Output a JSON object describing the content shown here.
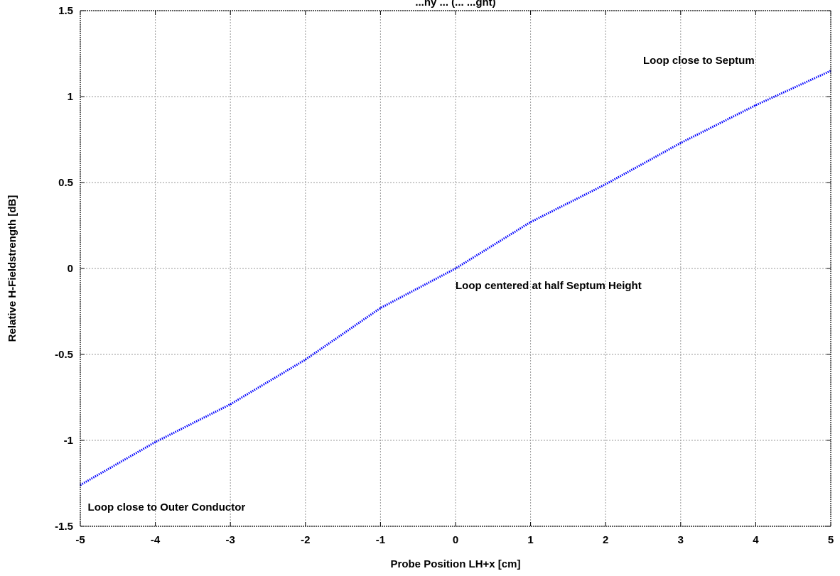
{
  "chart_data": {
    "type": "line",
    "title": "...ny ... (... ...ght)",
    "xlabel": "Probe Position LH+x [cm]",
    "ylabel": "Relative H-Fieldstrength [dB]",
    "xlim": [
      -5,
      5
    ],
    "ylim": [
      -1.5,
      1.5
    ],
    "xticks": [
      -5,
      -4,
      -3,
      -2,
      -1,
      0,
      1,
      2,
      3,
      4,
      5
    ],
    "xtick_labels": [
      "-5",
      "-4",
      "-3",
      "-2",
      "-1",
      "0",
      "1",
      "2",
      "3",
      "4",
      "5"
    ],
    "yticks": [
      -1.5,
      -1,
      -0.5,
      0,
      0.5,
      1,
      1.5
    ],
    "ytick_labels": [
      "-1.5",
      "-1",
      "-0.5",
      "0",
      "0.5",
      "1",
      "1.5"
    ],
    "grid": true,
    "series": [
      {
        "color": "#0000ff",
        "style": "dotted",
        "x": [
          -5,
          -4,
          -3,
          -2,
          -1,
          0,
          1,
          2,
          3,
          4,
          5
        ],
        "y": [
          -1.26,
          -1.01,
          -0.79,
          -0.53,
          -0.23,
          0.0,
          0.27,
          0.49,
          0.73,
          0.95,
          1.15
        ]
      }
    ],
    "annotations": [
      {
        "text": "Loop close to Septum",
        "x": 2.5,
        "y": 1.19
      },
      {
        "text": "Loop centered at half Septum Height",
        "x": 0.0,
        "y": -0.12
      },
      {
        "text": "Loop close to Outer Conductor",
        "x": -4.9,
        "y": -1.41
      }
    ]
  }
}
